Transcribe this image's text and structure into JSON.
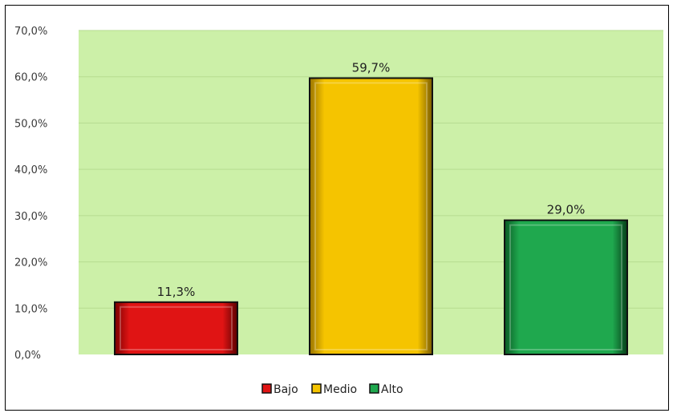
{
  "chart_data": {
    "type": "bar",
    "categories": [
      "Bajo",
      "Medio",
      "Alto"
    ],
    "values": [
      11.3,
      59.7,
      29.0
    ],
    "data_labels": [
      "11,3%",
      "59,7%",
      "29,0%"
    ],
    "colors": [
      "#e01414",
      "#f5c400",
      "#1fa84e"
    ],
    "ylim": [
      0,
      70
    ],
    "y_ticks": [
      0,
      10,
      20,
      30,
      40,
      50,
      60,
      70
    ],
    "y_tick_labels": [
      "0,0%",
      "10,0%",
      "20,0%",
      "30,0%",
      "40,0%",
      "50,0%",
      "60,0%",
      "70,0%"
    ],
    "grid": true,
    "plot_background": "#ccf0a8",
    "legend": {
      "position": "bottom",
      "entries": [
        "Bajo",
        "Medio",
        "Alto"
      ]
    }
  }
}
